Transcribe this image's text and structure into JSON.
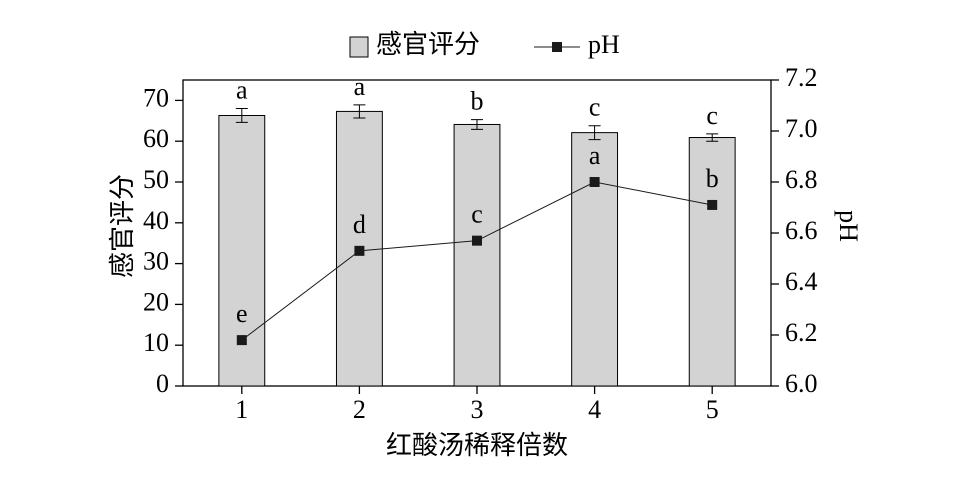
{
  "chart_data": {
    "type": "combo",
    "xlabel": "红酸汤稀释倍数",
    "ylabel": "感官评分",
    "y2label": "pH",
    "categories": [
      "1",
      "2",
      "3",
      "4",
      "5"
    ],
    "ylim": [
      0,
      75
    ],
    "yticks": [
      0,
      10,
      20,
      30,
      40,
      50,
      60,
      70
    ],
    "y2lim": [
      6.0,
      7.2
    ],
    "y2ticks": [
      {
        "value": 6.0,
        "label": "6.0"
      },
      6.2,
      6.4,
      6.6,
      6.8,
      {
        "value": 7.0,
        "label": "7.0"
      },
      7.2
    ],
    "series": [
      {
        "name": "感官评分",
        "type": "bar",
        "color": "#d3d3d3",
        "values": [
          66.3,
          67.3,
          64.1,
          62.1,
          60.9
        ],
        "error": [
          1.7,
          1.6,
          1.2,
          1.7,
          0.9
        ],
        "letters": [
          "a",
          "a",
          "b",
          "c",
          "c"
        ]
      },
      {
        "name": "pH",
        "type": "line",
        "axis": "y2",
        "color": "#1a1a1a",
        "values": [
          6.18,
          6.53,
          6.57,
          6.8,
          6.71
        ],
        "letters": [
          "e",
          "d",
          "c",
          "a",
          "b"
        ]
      }
    ]
  }
}
